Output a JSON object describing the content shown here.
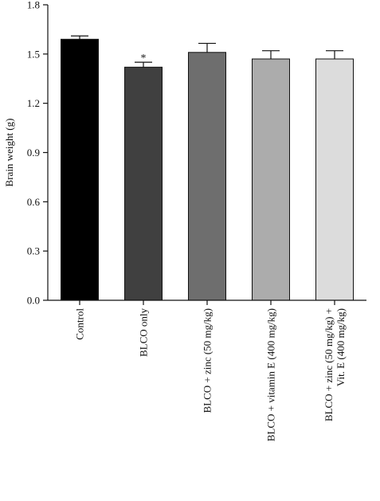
{
  "chart_data": {
    "type": "bar",
    "title": "",
    "xlabel": "",
    "ylabel": "Brain weight (g)",
    "ylim": [
      0,
      1.8
    ],
    "yticks": [
      "0.0",
      "0.3",
      "0.6",
      "0.9",
      "1.2",
      "1.5",
      "1.8"
    ],
    "grid": false,
    "categories": [
      [
        "Control"
      ],
      [
        "BLCO only"
      ],
      [
        "BLCO + zinc (50 mg/kg)"
      ],
      [
        "BLCO + vitamin E (400 mg/kg)"
      ],
      [
        "BLCO + zinc (50 mg/kg) +",
        "Vit. E (400 mg/kg)"
      ]
    ],
    "values": [
      1.59,
      1.42,
      1.51,
      1.47,
      1.47
    ],
    "errors": [
      0.02,
      0.03,
      0.055,
      0.05,
      0.05
    ],
    "bar_colors": [
      "#000000",
      "#404040",
      "#6e6e6e",
      "#acacac",
      "#dcdcdc"
    ],
    "annotations": [
      {
        "category_index": 1,
        "text": "*"
      }
    ]
  }
}
